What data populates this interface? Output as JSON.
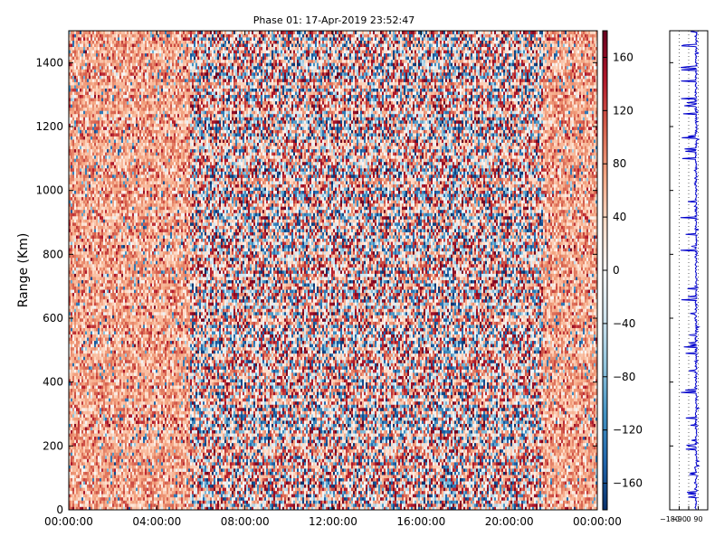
{
  "chart_data": [
    {
      "type": "heatmap",
      "title": "Phase 01: 17-Apr-2019 23:52:47",
      "xlabel": "",
      "ylabel": "Range (Km)",
      "x_ticks": [
        "00:00:00",
        "04:00:00",
        "08:00:00",
        "12:00:00",
        "16:00:00",
        "20:00:00",
        "00:00:00"
      ],
      "x_tick_hours": [
        0,
        4,
        8,
        12,
        16,
        20,
        24
      ],
      "xlim_hours": [
        0,
        24
      ],
      "y_ticks": [
        0,
        200,
        400,
        600,
        800,
        1000,
        1200,
        1400
      ],
      "ylim": [
        0,
        1500
      ],
      "value_range": [
        -180,
        180
      ],
      "colormap": "RdBu_r",
      "colormap_colors": [
        "#08306b",
        "#2166ac",
        "#4393c3",
        "#92c5de",
        "#d1e5f0",
        "#f7f7f7",
        "#fddbc7",
        "#f4a582",
        "#d6604d",
        "#b2182b",
        "#67001f"
      ],
      "background_phase_deg": 70,
      "high_scatter_interval_hours": [
        5.5,
        21.5
      ]
    },
    {
      "type": "colorbar",
      "ticks": [
        -160,
        -120,
        -80,
        -40,
        0,
        40,
        80,
        120,
        160
      ],
      "tick_labels": [
        "−160",
        "−120",
        "−80",
        "−40",
        "0",
        "40",
        "80",
        "120",
        "160"
      ],
      "range": [
        -180,
        180
      ]
    },
    {
      "type": "line",
      "series_color": "#0000cc",
      "xlim": [
        -180,
        180
      ],
      "ylim": [
        0,
        1500
      ],
      "x_tick_values": [
        -180,
        -90,
        0,
        90
      ],
      "x_tick_labels": [
        "−180",
        "−90",
        "0",
        "90"
      ],
      "mean_value": 70,
      "grid": "vertical-dotted"
    }
  ]
}
